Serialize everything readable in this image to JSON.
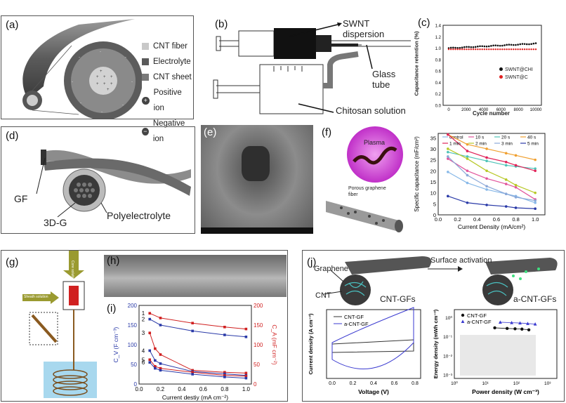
{
  "panel_a": {
    "label": "(a)",
    "legend": [
      {
        "text": "CNT fiber",
        "color": "#c8c8c8"
      },
      {
        "text": "Electrolyte",
        "color": "#6e6e6e"
      },
      {
        "text": "CNT sheet",
        "color": "#8a8a8a"
      },
      {
        "text": "Positive ion",
        "color": "#444444"
      },
      {
        "text": "Negative ion",
        "color": "#444444"
      }
    ]
  },
  "panel_b": {
    "label": "(b)",
    "swnt": "SWNT dispersion",
    "glass": "Glass tube",
    "chitosan": "Chitosan solution"
  },
  "panel_c": {
    "label": "(c)",
    "ylabel": "Capacitance retention (%)",
    "xlabel": "Cycle number",
    "legend1": "SWNT@CHI",
    "legend2": "SWNT@C",
    "yticks": [
      "1.4",
      "1.2",
      "1.0",
      "0.8",
      "0.6",
      "0.4",
      "0.2",
      "0.0"
    ],
    "xticks": [
      "0",
      "2000",
      "4000",
      "6000",
      "8000",
      "10000"
    ]
  },
  "panel_d": {
    "label": "(d)",
    "gf": "GF",
    "g3d": "3D-G",
    "poly": "Polyelectrolyte"
  },
  "panel_e": {
    "label": "(e)"
  },
  "panel_f": {
    "label": "(f)",
    "plasma": "Plasma",
    "porous": "Porous graphene fiber"
  },
  "chart_data": [
    {
      "type": "line",
      "panel": "f",
      "ylabel": "Specific capacitance (mF/cm²)",
      "xlabel": "Current Density (mA/cm²)",
      "xlim": [
        0,
        1.1
      ],
      "ylim": [
        0,
        37
      ],
      "xticks": [
        "0.0",
        "0.2",
        "0.4",
        "0.6",
        "0.8",
        "1.0"
      ],
      "yticks": [
        "0",
        "5",
        "10",
        "15",
        "20",
        "25",
        "30",
        "35"
      ],
      "x": [
        0.1,
        0.3,
        0.5,
        0.7,
        0.8,
        1.0
      ],
      "series": [
        {
          "name": "control",
          "color": "#87b8e8",
          "values": [
            19.5,
            14.5,
            11.5,
            9.5,
            8.5,
            5.5
          ]
        },
        {
          "name": "10 s",
          "color": "#e2559c",
          "values": [
            25.5,
            20,
            16.5,
            14,
            12.5,
            7
          ]
        },
        {
          "name": "20 s",
          "color": "#4fc4b8",
          "values": [
            28.5,
            26.5,
            24.5,
            22.5,
            22,
            21
          ]
        },
        {
          "name": "40 s",
          "color": "#f0a030",
          "values": [
            36.5,
            32,
            30,
            28,
            27,
            25
          ]
        },
        {
          "name": "1 min",
          "color": "#e0245a",
          "values": [
            36.5,
            29,
            26,
            24,
            22.5,
            20
          ]
        },
        {
          "name": "2 min",
          "color": "#b8c828",
          "values": [
            30,
            25.5,
            20,
            16,
            13.5,
            10
          ]
        },
        {
          "name": "3 min",
          "color": "#8aa8d8",
          "values": [
            26.5,
            18,
            13,
            9.5,
            8,
            6.5
          ]
        },
        {
          "name": "5 min",
          "color": "#2a3aa8",
          "values": [
            8.5,
            5.5,
            4.5,
            3.8,
            3.2,
            2.8
          ]
        }
      ]
    },
    {
      "type": "line",
      "panel": "i",
      "xlabel": "Current destiy (mA cm⁻²)",
      "ylabel_left": "C_V (F cm⁻³)",
      "ylabel_right": "C_A (mF cm⁻²)",
      "xlim": [
        0,
        1.05
      ],
      "ylim_left": [
        0,
        200
      ],
      "ylim_right": [
        0,
        200
      ],
      "xticks": [
        "0.0",
        "0.2",
        "0.4",
        "0.6",
        "0.8",
        "1.0"
      ],
      "yticks": [
        "0",
        "50",
        "100",
        "150",
        "200"
      ],
      "x_top": [
        0.1,
        0.2,
        0.5,
        0.8,
        1.0
      ],
      "x_low": [
        0.1,
        0.15,
        0.2,
        0.5,
        0.8,
        1.0
      ],
      "series": [
        {
          "name": "1",
          "axis": "right",
          "color": "#d02020",
          "x": [
            0.1,
            0.2,
            0.5,
            0.8,
            1.0
          ],
          "values": [
            180,
            168,
            155,
            145,
            140
          ]
        },
        {
          "name": "2",
          "axis": "left",
          "color": "#2a3aa8",
          "x": [
            0.1,
            0.2,
            0.5,
            0.8,
            1.0
          ],
          "values": [
            165,
            150,
            135,
            125,
            120
          ]
        },
        {
          "name": "3",
          "axis": "right",
          "color": "#d02020",
          "x": [
            0.1,
            0.15,
            0.2,
            0.5,
            0.8,
            1.0
          ],
          "values": [
            130,
            90,
            75,
            35,
            30,
            28
          ]
        },
        {
          "name": "4",
          "axis": "left",
          "color": "#2a3aa8",
          "x": [
            0.1,
            0.15,
            0.2,
            0.5,
            0.8,
            1.0
          ],
          "values": [
            85,
            60,
            52,
            32,
            26,
            22
          ]
        },
        {
          "name": "5",
          "axis": "right",
          "color": "#d02020",
          "x": [
            0.1,
            0.15,
            0.2,
            0.5,
            0.8,
            1.0
          ],
          "values": [
            62,
            45,
            40,
            30,
            22,
            20
          ]
        },
        {
          "name": "6",
          "axis": "left",
          "color": "#2a3aa8",
          "x": [
            0.1,
            0.15,
            0.2,
            0.5,
            0.8,
            1.0
          ],
          "values": [
            55,
            40,
            35,
            25,
            18,
            15
          ]
        }
      ]
    },
    {
      "type": "line",
      "panel": "j-cv",
      "xlabel": "Voltage (V)",
      "ylabel": "Current density (A cm⁻³)",
      "xticks": [
        "0.0",
        "0.2",
        "0.4",
        "0.6",
        "0.8"
      ],
      "series": [
        {
          "name": "CNT-GF",
          "color": "#333333"
        },
        {
          "name": "a-CNT-GF",
          "color": "#3a3ad0"
        }
      ]
    },
    {
      "type": "scatter",
      "panel": "j-ragone",
      "xlabel": "Power density (W cm⁻³)",
      "ylabel": "Energy density (mWh cm⁻³)",
      "xticks": [
        "10⁰",
        "10¹",
        "10²",
        "10³"
      ],
      "yticks": [
        "10⁰",
        "10⁻¹",
        "10⁻²",
        "10⁻³"
      ],
      "series": [
        {
          "name": "CNT-GF",
          "color": "#111111",
          "x": [
            20,
            50,
            90,
            150,
            250
          ],
          "values": [
            0.28,
            0.26,
            0.25,
            0.24,
            0.22
          ]
        },
        {
          "name": "a-CNT-GF",
          "color": "#3a3ad0",
          "x": [
            30,
            70,
            130,
            230,
            400
          ],
          "values": [
            0.55,
            0.52,
            0.5,
            0.47,
            0.44
          ]
        }
      ]
    }
  ],
  "panel_g": {
    "label": "(g)",
    "core": "Core solution",
    "sheath": "Sheath solution"
  },
  "panel_h": {
    "label": "(h)"
  },
  "panel_i": {
    "label": "(i)"
  },
  "panel_j": {
    "label": "(j)",
    "graphene": "Graphene",
    "cnt": "CNT",
    "cntgfs": "CNT-GFs",
    "activation": "Surface activation",
    "acntgfs": "a-CNT-GFs"
  }
}
